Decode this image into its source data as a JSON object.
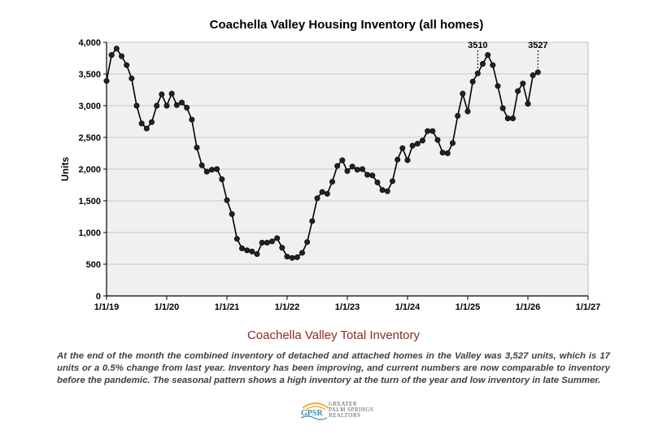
{
  "chart_data": {
    "type": "line",
    "title": "Coachella Valley Housing Inventory (all homes)",
    "ylabel": "Units",
    "xlabel": "",
    "ylim": [
      0,
      4000
    ],
    "y_ticks": [
      "0",
      "500",
      "1,000",
      "1,500",
      "2,000",
      "2,500",
      "3,000",
      "3,500",
      "4,000"
    ],
    "y_tick_values": [
      0,
      500,
      1000,
      1500,
      2000,
      2500,
      3000,
      3500,
      4000
    ],
    "x_ticks": [
      "1/1/19",
      "1/1/20",
      "1/1/21",
      "1/1/22",
      "1/1/23",
      "1/1/24",
      "1/1/25",
      "1/1/26",
      "1/1/27"
    ],
    "x_start": "2019-01",
    "x_end": "2027-01",
    "grid": true,
    "series": [
      {
        "x": [
          "2019-01",
          "2019-02",
          "2019-03",
          "2019-04",
          "2019-05",
          "2019-06",
          "2019-07",
          "2019-08",
          "2019-09",
          "2019-10",
          "2019-11",
          "2019-12",
          "2020-01",
          "2020-02",
          "2020-03",
          "2020-04",
          "2020-05",
          "2020-06",
          "2020-07",
          "2020-08",
          "2020-09",
          "2020-10",
          "2020-11",
          "2020-12",
          "2021-01",
          "2021-02",
          "2021-03",
          "2021-04",
          "2021-05",
          "2021-06",
          "2021-07",
          "2021-08",
          "2021-09",
          "2021-10",
          "2021-11",
          "2021-12",
          "2022-01",
          "2022-02",
          "2022-03",
          "2022-04",
          "2022-05",
          "2022-06",
          "2022-07",
          "2022-08",
          "2022-09",
          "2022-10",
          "2022-11",
          "2022-12",
          "2023-01",
          "2023-02",
          "2023-03",
          "2023-04",
          "2023-05",
          "2023-06",
          "2023-07",
          "2023-08",
          "2023-09",
          "2023-10",
          "2023-11",
          "2023-12",
          "2024-01",
          "2024-02",
          "2024-03",
          "2024-04",
          "2024-05",
          "2024-06",
          "2024-07",
          "2024-08",
          "2024-09",
          "2024-10",
          "2024-11",
          "2024-12",
          "2025-01",
          "2025-02",
          "2025-03",
          "2025-04",
          "2025-05",
          "2025-06",
          "2025-07",
          "2025-08",
          "2025-09",
          "2025-10",
          "2025-11",
          "2025-12",
          "2026-01",
          "2026-02",
          "2026-03"
        ],
        "values": [
          3390,
          3800,
          3900,
          3780,
          3640,
          3430,
          3000,
          2720,
          2640,
          2740,
          3000,
          3180,
          3000,
          3190,
          3010,
          3050,
          2970,
          2780,
          2340,
          2060,
          1960,
          1990,
          2000,
          1840,
          1510,
          1290,
          900,
          750,
          720,
          700,
          660,
          840,
          840,
          860,
          910,
          760,
          620,
          600,
          610,
          680,
          850,
          1180,
          1540,
          1640,
          1610,
          1800,
          2050,
          2140,
          1970,
          2040,
          1990,
          2000,
          1910,
          1900,
          1790,
          1670,
          1650,
          1810,
          2150,
          2330,
          2140,
          2370,
          2400,
          2450,
          2600,
          2600,
          2460,
          2260,
          2250,
          2410,
          2840,
          3190,
          2910,
          3380,
          3510,
          3660,
          3800,
          3640,
          3310,
          2960,
          2800,
          2800,
          3230,
          3350,
          3030,
          3480,
          3527
        ]
      }
    ],
    "annotations": [
      {
        "label": "3510",
        "x": "2025-03",
        "value": 3510
      },
      {
        "label": "3527",
        "x": "2026-03",
        "value": 3527
      }
    ]
  },
  "subtitle": "Coachella Valley Total Inventory",
  "description": "At the end of the month the combined inventory of detached and attached homes in the Valley was 3,527 units, which is 17 units or a 0.5% change from last year. Inventory has been improving, and current numbers are now comparable to inventory before the pandemic. The seasonal pattern shows a high inventory at the turn of the year and low inventory in late Summer.",
  "logo": {
    "mark": "GPSR",
    "name_lines": [
      "GREATER",
      "PALM SPRINGS",
      "REALTORS"
    ],
    "colors": {
      "sun": "#f2b233",
      "water": "#3a8bb5"
    }
  }
}
